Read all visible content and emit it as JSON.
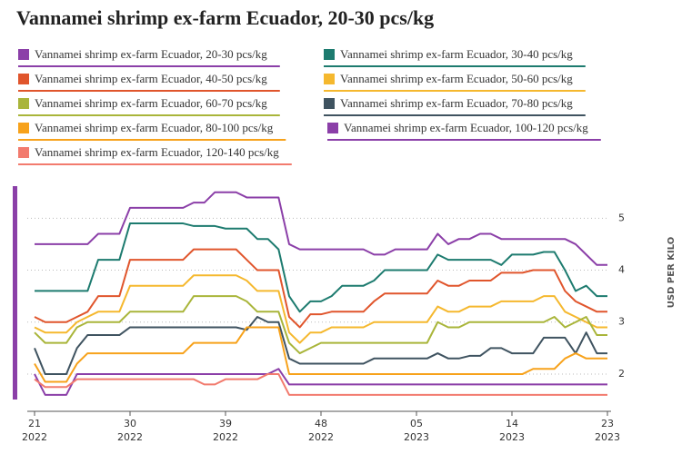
{
  "chart_data": {
    "type": "line",
    "title": "Vannamei shrimp ex-farm Ecuador, 20-30 pcs/kg",
    "y_axis_label": "USD PER KILO",
    "categories": [
      "21",
      null,
      null,
      null,
      null,
      null,
      null,
      null,
      null,
      "30",
      null,
      null,
      null,
      null,
      null,
      null,
      null,
      null,
      "39",
      null,
      null,
      null,
      null,
      null,
      null,
      null,
      null,
      "48",
      null,
      null,
      null,
      null,
      null,
      null,
      null,
      null,
      "05",
      null,
      null,
      null,
      null,
      null,
      null,
      null,
      null,
      "14",
      null,
      null,
      null,
      null,
      null,
      null,
      null,
      null,
      "23"
    ],
    "category_years": [
      "2022",
      null,
      null,
      null,
      null,
      null,
      null,
      null,
      null,
      "2022",
      null,
      null,
      null,
      null,
      null,
      null,
      null,
      null,
      "2022",
      null,
      null,
      null,
      null,
      null,
      null,
      null,
      null,
      "2022",
      null,
      null,
      null,
      null,
      null,
      null,
      null,
      null,
      "2023",
      null,
      null,
      null,
      null,
      null,
      null,
      null,
      null,
      "2023",
      null,
      null,
      null,
      null,
      null,
      null,
      null,
      null,
      "2023"
    ],
    "ylim": [
      1.3,
      5.6
    ],
    "yticks": [
      2,
      3,
      4,
      5
    ],
    "grid": true,
    "series": [
      {
        "name": "Vannamei shrimp ex-farm Ecuador, 20-30 pcs/kg",
        "color": "#8b3fa8",
        "values": [
          4.5,
          4.5,
          4.5,
          4.5,
          4.5,
          4.5,
          4.7,
          4.7,
          4.7,
          5.2,
          5.2,
          5.2,
          5.2,
          5.2,
          5.2,
          5.3,
          5.3,
          5.5,
          5.5,
          5.5,
          5.4,
          5.4,
          5.4,
          5.4,
          4.5,
          4.4,
          4.4,
          4.4,
          4.4,
          4.4,
          4.4,
          4.4,
          4.3,
          4.3,
          4.4,
          4.4,
          4.4,
          4.4,
          4.7,
          4.5,
          4.6,
          4.6,
          4.7,
          4.7,
          4.6,
          4.6,
          4.6,
          4.6,
          4.6,
          4.6,
          4.6,
          4.5,
          4.3,
          4.1,
          4.1
        ]
      },
      {
        "name": "Vannamei shrimp ex-farm Ecuador, 30-40 pcs/kg",
        "color": "#1d7b6f",
        "values": [
          3.6,
          3.6,
          3.6,
          3.6,
          3.6,
          3.6,
          4.2,
          4.2,
          4.2,
          4.9,
          4.9,
          4.9,
          4.9,
          4.9,
          4.9,
          4.85,
          4.85,
          4.85,
          4.8,
          4.8,
          4.8,
          4.6,
          4.6,
          4.4,
          3.5,
          3.2,
          3.4,
          3.4,
          3.5,
          3.7,
          3.7,
          3.7,
          3.8,
          4.0,
          4.0,
          4.0,
          4.0,
          4.0,
          4.3,
          4.2,
          4.2,
          4.2,
          4.2,
          4.2,
          4.1,
          4.3,
          4.3,
          4.3,
          4.35,
          4.35,
          4.0,
          3.6,
          3.7,
          3.5,
          3.5
        ]
      },
      {
        "name": "Vannamei shrimp ex-farm Ecuador, 40-50 pcs/kg",
        "color": "#e0552c",
        "values": [
          3.1,
          3.0,
          3.0,
          3.0,
          3.1,
          3.2,
          3.5,
          3.5,
          3.5,
          4.2,
          4.2,
          4.2,
          4.2,
          4.2,
          4.2,
          4.4,
          4.4,
          4.4,
          4.4,
          4.4,
          4.2,
          4.0,
          4.0,
          4.0,
          3.1,
          2.9,
          3.15,
          3.15,
          3.2,
          3.2,
          3.2,
          3.2,
          3.4,
          3.55,
          3.55,
          3.55,
          3.55,
          3.55,
          3.8,
          3.7,
          3.7,
          3.8,
          3.8,
          3.8,
          3.95,
          3.95,
          3.95,
          4.0,
          4.0,
          4.0,
          3.6,
          3.4,
          3.3,
          3.2,
          3.2
        ]
      },
      {
        "name": "Vannamei shrimp ex-farm Ecuador, 50-60 pcs/kg",
        "color": "#f5b82e",
        "values": [
          2.9,
          2.8,
          2.8,
          2.8,
          3.0,
          3.1,
          3.2,
          3.2,
          3.2,
          3.7,
          3.7,
          3.7,
          3.7,
          3.7,
          3.7,
          3.9,
          3.9,
          3.9,
          3.9,
          3.9,
          3.8,
          3.6,
          3.6,
          3.6,
          2.8,
          2.6,
          2.8,
          2.8,
          2.9,
          2.9,
          2.9,
          2.9,
          3.0,
          3.0,
          3.0,
          3.0,
          3.0,
          3.0,
          3.3,
          3.2,
          3.2,
          3.3,
          3.3,
          3.3,
          3.4,
          3.4,
          3.4,
          3.4,
          3.5,
          3.5,
          3.2,
          3.1,
          3.0,
          2.9,
          2.9
        ]
      },
      {
        "name": "Vannamei shrimp ex-farm Ecuador, 60-70 pcs/kg",
        "color": "#a9b53a",
        "values": [
          2.8,
          2.6,
          2.6,
          2.6,
          2.9,
          3.0,
          3.0,
          3.0,
          3.0,
          3.2,
          3.2,
          3.2,
          3.2,
          3.2,
          3.2,
          3.5,
          3.5,
          3.5,
          3.5,
          3.5,
          3.4,
          3.2,
          3.2,
          3.2,
          2.6,
          2.4,
          2.5,
          2.6,
          2.6,
          2.6,
          2.6,
          2.6,
          2.6,
          2.6,
          2.6,
          2.6,
          2.6,
          2.6,
          3.0,
          2.9,
          2.9,
          3.0,
          3.0,
          3.0,
          3.0,
          3.0,
          3.0,
          3.0,
          3.0,
          3.1,
          2.9,
          3.0,
          3.1,
          2.75,
          2.75
        ]
      },
      {
        "name": "Vannamei shrimp ex-farm Ecuador, 70-80 pcs/kg",
        "color": "#3f5360",
        "values": [
          2.5,
          2.0,
          2.0,
          2.0,
          2.5,
          2.75,
          2.75,
          2.75,
          2.75,
          2.9,
          2.9,
          2.9,
          2.9,
          2.9,
          2.9,
          2.9,
          2.9,
          2.9,
          2.9,
          2.9,
          2.85,
          3.1,
          3.0,
          3.0,
          2.3,
          2.2,
          2.2,
          2.2,
          2.2,
          2.2,
          2.2,
          2.2,
          2.3,
          2.3,
          2.3,
          2.3,
          2.3,
          2.3,
          2.4,
          2.3,
          2.3,
          2.35,
          2.35,
          2.5,
          2.5,
          2.4,
          2.4,
          2.4,
          2.7,
          2.7,
          2.7,
          2.4,
          2.8,
          2.4,
          2.4
        ]
      },
      {
        "name": "Vannamei shrimp ex-farm Ecuador, 80-100 pcs/kg",
        "color": "#f7a21b",
        "values": [
          2.2,
          1.85,
          1.85,
          1.85,
          2.2,
          2.4,
          2.4,
          2.4,
          2.4,
          2.4,
          2.4,
          2.4,
          2.4,
          2.4,
          2.4,
          2.6,
          2.6,
          2.6,
          2.6,
          2.6,
          2.9,
          2.9,
          2.9,
          2.9,
          2.0,
          2.0,
          2.0,
          2.0,
          2.0,
          2.0,
          2.0,
          2.0,
          2.0,
          2.0,
          2.0,
          2.0,
          2.0,
          2.0,
          2.0,
          2.0,
          2.0,
          2.0,
          2.0,
          2.0,
          2.0,
          2.0,
          2.0,
          2.1,
          2.1,
          2.1,
          2.3,
          2.4,
          2.3,
          2.3,
          2.3
        ]
      },
      {
        "name": "Vannamei shrimp ex-farm Ecuador, 100-120 pcs/kg",
        "color": "#8b3fa8",
        "values": [
          2.0,
          1.6,
          1.6,
          1.6,
          2.0,
          2.0,
          2.0,
          2.0,
          2.0,
          2.0,
          2.0,
          2.0,
          2.0,
          2.0,
          2.0,
          2.0,
          2.0,
          2.0,
          2.0,
          2.0,
          2.0,
          2.0,
          2.0,
          2.1,
          1.8,
          1.8,
          1.8,
          1.8,
          1.8,
          1.8,
          1.8,
          1.8,
          1.8,
          1.8,
          1.8,
          1.8,
          1.8,
          1.8,
          1.8,
          1.8,
          1.8,
          1.8,
          1.8,
          1.8,
          1.8,
          1.8,
          1.8,
          1.8,
          1.8,
          1.8,
          1.8,
          1.8,
          1.8,
          1.8,
          1.8
        ]
      },
      {
        "name": "Vannamei shrimp ex-farm Ecuador, 120-140 pcs/kg",
        "color": "#f27b6e",
        "values": [
          1.9,
          1.75,
          1.75,
          1.75,
          1.9,
          1.9,
          1.9,
          1.9,
          1.9,
          1.9,
          1.9,
          1.9,
          1.9,
          1.9,
          1.9,
          1.9,
          1.8,
          1.8,
          1.9,
          1.9,
          1.9,
          1.9,
          2.0,
          2.0,
          1.6,
          1.6,
          1.6,
          1.6,
          1.6,
          1.6,
          1.6,
          1.6,
          1.6,
          1.6,
          1.6,
          1.6,
          1.6,
          1.6,
          1.6,
          1.6,
          1.6,
          1.6,
          1.6,
          1.6,
          1.6,
          1.6,
          1.6,
          1.6,
          1.6,
          1.6,
          1.6,
          1.6,
          1.6,
          1.6,
          1.6
        ]
      }
    ]
  }
}
